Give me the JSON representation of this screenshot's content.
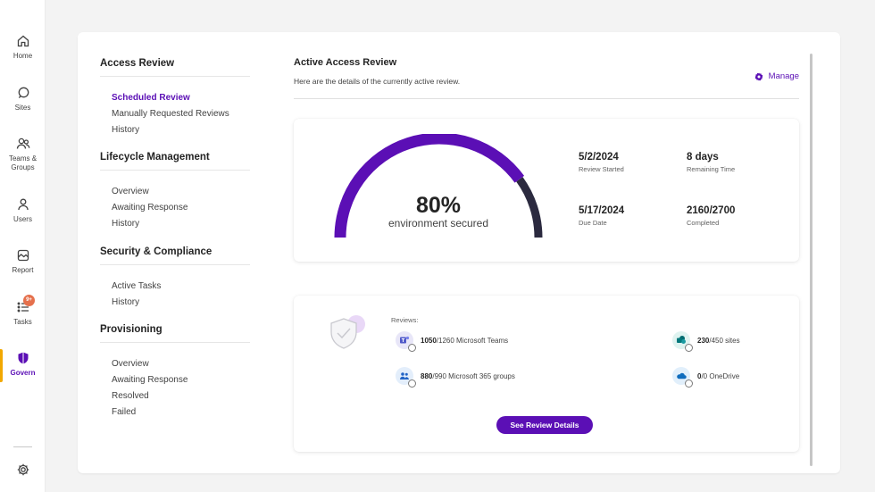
{
  "rail": {
    "items": [
      {
        "label": "Home",
        "icon": "home-icon"
      },
      {
        "label": "Sites",
        "icon": "sites-icon"
      },
      {
        "label": "Teams & Groups",
        "icon": "people-icon"
      },
      {
        "label": "Users",
        "icon": "person-icon"
      },
      {
        "label": "Report",
        "icon": "report-icon"
      },
      {
        "label": "Tasks",
        "icon": "tasks-icon",
        "badge": "9+"
      },
      {
        "label": "Govern",
        "icon": "shield-icon",
        "active": true
      }
    ],
    "settings_icon": "settings-icon"
  },
  "nav": {
    "sections": [
      {
        "title": "Access Review",
        "links": [
          "Scheduled Review",
          "Manually Requested Reviews",
          "History"
        ],
        "selected": 0
      },
      {
        "title": "Lifecycle Management",
        "links": [
          "Overview",
          "Awaiting Response",
          "History"
        ]
      },
      {
        "title": "Security & Compliance",
        "links": [
          "Active Tasks",
          "History"
        ]
      },
      {
        "title": "Provisioning",
        "links": [
          "Overview",
          "Awaiting Response",
          "Resolved",
          "Failed"
        ]
      }
    ]
  },
  "main": {
    "title": "Active Access Review",
    "subtitle": "Here are the details of the currently active review.",
    "manage_label": "Manage",
    "gauge": {
      "percent": 80,
      "value_label": "80%",
      "caption": "environment secured",
      "color_filled": "#5b0fb5",
      "color_remaining": "#2b2a3f"
    },
    "stats": [
      {
        "value": "5/2/2024",
        "label": "Review Started"
      },
      {
        "value": "8 days",
        "label": "Remaining Time"
      },
      {
        "value": "5/17/2024",
        "label": "Due Date"
      },
      {
        "value": "2160/2700",
        "label": "Completed"
      }
    ],
    "reviews": {
      "label": "Reviews:",
      "items": [
        {
          "count": "1050",
          "total": "/1260 Microsoft Teams",
          "icon": "teams-icon"
        },
        {
          "count": "230",
          "total": "/450 sites",
          "icon": "sharepoint-icon"
        },
        {
          "count": "880",
          "total": "/990 Microsoft 365 groups",
          "icon": "groups-icon"
        },
        {
          "count": "0",
          "total": "/0 OneDrive",
          "icon": "onedrive-icon"
        }
      ],
      "button_label": "See Review Details"
    }
  },
  "colors": {
    "accent": "#5b0fb5",
    "active_marker": "#f2a800",
    "badge": "#e5704c"
  }
}
